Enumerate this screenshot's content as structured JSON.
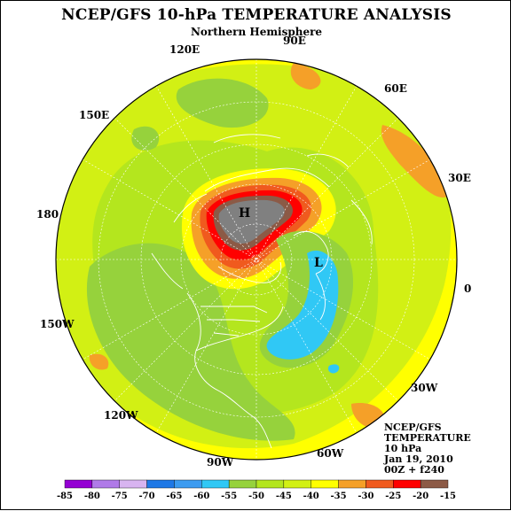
{
  "title": "NCEP/GFS 10-hPa TEMPERATURE ANALYSIS",
  "subtitle": "Northern Hemisphere",
  "longitudes": {
    "lon_90e": "90E",
    "lon_120e": "120E",
    "lon_60e": "60E",
    "lon_150e": "150E",
    "lon_30e": "30E",
    "lon_180": "180",
    "lon_0": "0",
    "lon_150w": "150W",
    "lon_30w": "30W",
    "lon_120w": "120W",
    "lon_90w": "90W",
    "lon_60w": "60W"
  },
  "markers": {
    "high": "H",
    "low": "L"
  },
  "info": {
    "line1": "NCEP/GFS",
    "line2": "TEMPERATURE",
    "line3": "10 hPa",
    "line4": "Jan 19, 2010",
    "line5": "00Z + f240"
  },
  "colorbar": {
    "labels": [
      "-85",
      "-80",
      "-75",
      "-70",
      "-65",
      "-60",
      "-55",
      "-50",
      "-45",
      "-40",
      "-35",
      "-30",
      "-25",
      "-20",
      "-15"
    ],
    "colors": [
      "#9400d3",
      "#b07ae8",
      "#d8b4f0",
      "#1e78e6",
      "#3c9bf0",
      "#30c8f5",
      "#96d23c",
      "#b4e61e",
      "#d2f014",
      "#ffff00",
      "#f5a028",
      "#f05a1e",
      "#ff0000",
      "#8c5a46",
      "#808080"
    ]
  }
}
